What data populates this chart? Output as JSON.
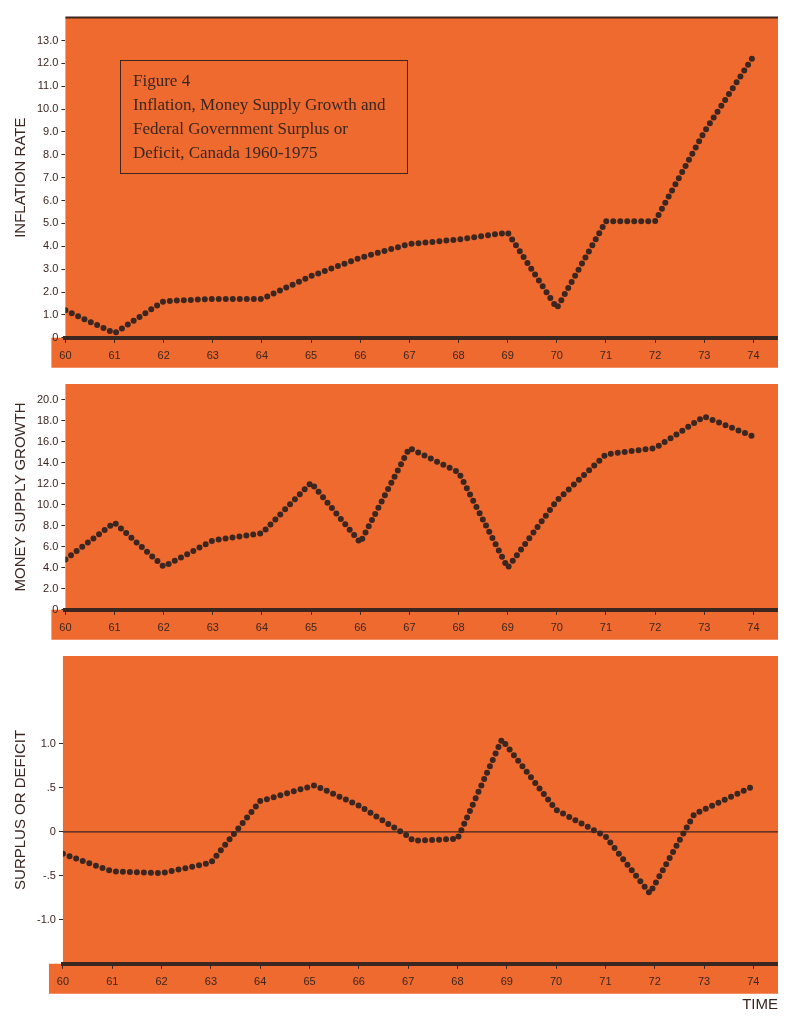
{
  "chart_data": [
    {
      "type": "line",
      "title": "Figure 4",
      "subtitle": "Inflation, Money Supply Growth and Federal Government Surplus or Deficit, Canada 1960-1975",
      "ylabel": "INFLATION RATE",
      "x": [
        60,
        61,
        62,
        63,
        64,
        65,
        66,
        67,
        68,
        69,
        70,
        71,
        72,
        73,
        74
      ],
      "series": [
        {
          "color": "#3b2620",
          "values": [
            1.2,
            0.2,
            1.6,
            1.7,
            1.7,
            2.7,
            3.5,
            4.1,
            4.3,
            4.6,
            1.3,
            5.1,
            5.1,
            9.0,
            12.3
          ]
        }
      ],
      "xlim": [
        60,
        74.5
      ],
      "xticks": [
        60,
        61,
        62,
        63,
        64,
        65,
        66,
        67,
        68,
        69,
        70,
        71,
        72,
        73,
        74
      ],
      "ylim": [
        0,
        14
      ],
      "yticks": [
        {
          "value": 0,
          "label": "0"
        },
        {
          "value": 1,
          "label": "1.0"
        },
        {
          "value": 2,
          "label": "2.0"
        },
        {
          "value": 3,
          "label": "3.0"
        },
        {
          "value": 4,
          "label": "4.0"
        },
        {
          "value": 5,
          "label": "5.0"
        },
        {
          "value": 6,
          "label": "6.0"
        },
        {
          "value": 7,
          "label": "7.0"
        },
        {
          "value": 8,
          "label": "8.0"
        },
        {
          "value": 9,
          "label": "9.0"
        },
        {
          "value": 10,
          "label": "10.0"
        },
        {
          "value": 11,
          "label": "11.0"
        },
        {
          "value": 12,
          "label": "12.0"
        },
        {
          "value": 13,
          "label": "13.0"
        }
      ],
      "line_style": "dotted"
    },
    {
      "type": "line",
      "ylabel": "MONEY SUPPLY GROWTH",
      "x": [
        60,
        61,
        62,
        63,
        64,
        65,
        66,
        67,
        68,
        69,
        70,
        71,
        72,
        73,
        74
      ],
      "series": [
        {
          "color": "#3b2620",
          "values": [
            4.8,
            8.3,
            4.1,
            6.6,
            7.3,
            12.1,
            6.4,
            15.4,
            13.1,
            4.0,
            10.4,
            14.8,
            15.4,
            18.4,
            16.5
          ]
        }
      ],
      "xlim": [
        60,
        74.5
      ],
      "xticks": [
        60,
        61,
        62,
        63,
        64,
        65,
        66,
        67,
        68,
        69,
        70,
        71,
        72,
        73,
        74
      ],
      "ylim": [
        0,
        21.5
      ],
      "yticks": [
        {
          "value": 0,
          "label": "0"
        },
        {
          "value": 2,
          "label": "2.0"
        },
        {
          "value": 4,
          "label": "4.0"
        },
        {
          "value": 6,
          "label": "6.0"
        },
        {
          "value": 8,
          "label": "8.0"
        },
        {
          "value": 10,
          "label": "10.0"
        },
        {
          "value": 12,
          "label": "12.0"
        },
        {
          "value": 14,
          "label": "14.0"
        },
        {
          "value": 16,
          "label": "16.0"
        },
        {
          "value": 18,
          "label": "18.0"
        },
        {
          "value": 20,
          "label": "20.0"
        }
      ],
      "line_style": "dotted"
    },
    {
      "type": "line",
      "ylabel": "SURPLUS OR DEFICIT",
      "xlabel": "TIME",
      "series": [
        {
          "color": "#3b2620",
          "x": [
            60,
            61,
            62,
            63,
            63.5,
            64,
            65.1,
            66,
            67,
            67.1,
            68,
            68.9,
            70,
            71,
            71.9,
            72.8,
            74
          ],
          "values": [
            -0.25,
            -0.45,
            -0.47,
            -0.35,
            0,
            0.35,
            0.53,
            0.3,
            -0.05,
            -0.1,
            -0.08,
            1.05,
            0.25,
            -0.05,
            -0.7,
            0.2,
            0.52
          ]
        }
      ],
      "xlim": [
        60,
        74.5
      ],
      "xticks": [
        60,
        61,
        62,
        63,
        64,
        65,
        66,
        67,
        68,
        69,
        70,
        71,
        72,
        73,
        74
      ],
      "ylim": [
        -1.5,
        2.0
      ],
      "yticks": [
        {
          "value": -1,
          "label": "-1.0"
        },
        {
          "value": -0.5,
          "label": "-.5"
        },
        {
          "value": 0,
          "label": "0"
        },
        {
          "value": 0.5,
          "label": ".5"
        },
        {
          "value": 1,
          "label": "1.0"
        }
      ],
      "ref_lines": [
        {
          "axis": "y",
          "value": 0,
          "color": "#3b2620"
        }
      ],
      "line_style": "dotted"
    }
  ]
}
